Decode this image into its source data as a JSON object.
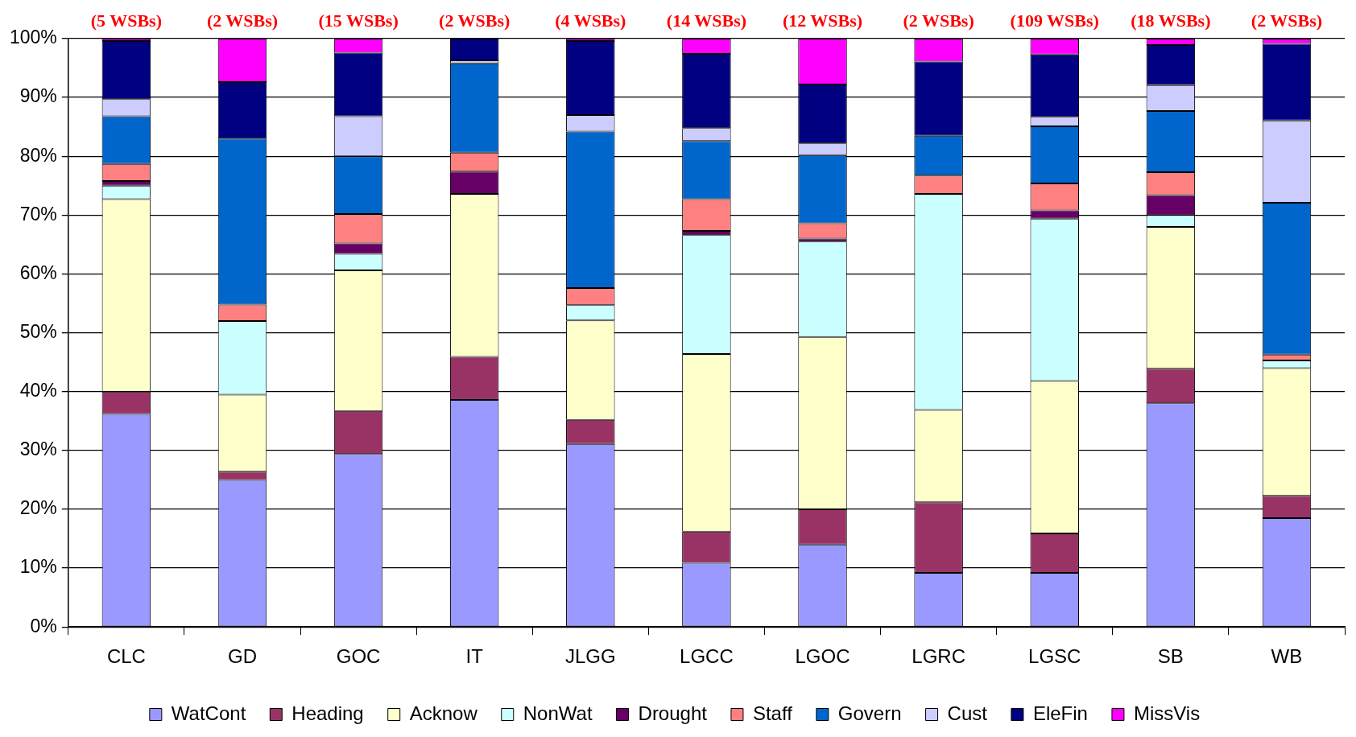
{
  "chart_data": {
    "type": "bar",
    "stacked": true,
    "categories": [
      "CLC",
      "GD",
      "GOC",
      "IT",
      "JLGG",
      "LGCC",
      "LGOC",
      "LGRC",
      "LGSC",
      "SB",
      "WB"
    ],
    "series": [
      {
        "name": "WatCont",
        "color": "#9999ff",
        "values": [
          36.2,
          25,
          29.4,
          38.6,
          31.1,
          10.9,
          14,
          9.2,
          9.2,
          38,
          18.5
        ]
      },
      {
        "name": "Heading",
        "color": "#993366",
        "values": [
          3.8,
          1.4,
          7.3,
          7.3,
          4.1,
          5.3,
          6,
          12,
          6.7,
          5.9,
          3.8
        ]
      },
      {
        "name": "Acknow",
        "color": "#ffffcc",
        "values": [
          32.7,
          13.1,
          23.9,
          27.7,
          16.9,
          30.2,
          29.3,
          15.7,
          25.9,
          24.1,
          21.7
        ]
      },
      {
        "name": "NonWat",
        "color": "#ccffff",
        "values": [
          2.3,
          12.5,
          2.8,
          0,
          2.6,
          20.2,
          16.2,
          36.7,
          27.6,
          2,
          1.3
        ]
      },
      {
        "name": "Drought",
        "color": "#660066",
        "values": [
          0.8,
          0,
          1.8,
          3.8,
          0,
          0.7,
          0.5,
          0,
          1.4,
          3.4,
          0
        ]
      },
      {
        "name": "Staff",
        "color": "#ff8080",
        "values": [
          2.9,
          2.8,
          5,
          3.2,
          2.9,
          5.4,
          2.6,
          3.1,
          4.6,
          3.9,
          1
        ]
      },
      {
        "name": "Govern",
        "color": "#0066cc",
        "values": [
          8.1,
          28.2,
          9.8,
          15.2,
          26.6,
          9.9,
          11.6,
          6.8,
          9.7,
          10.4,
          25.8
        ]
      },
      {
        "name": "Cust",
        "color": "#ccccff",
        "values": [
          2.9,
          0,
          6.8,
          0.5,
          2.8,
          2.2,
          2,
          0,
          1.6,
          4.4,
          14
        ]
      },
      {
        "name": "EleFin",
        "color": "#000080",
        "values": [
          9.9,
          9.6,
          10.8,
          3.7,
          12.6,
          12.6,
          10,
          12.6,
          10.6,
          6.8,
          13
        ]
      },
      {
        "name": "MissVis",
        "color": "#ff00ff",
        "values": [
          0.4,
          7.4,
          2.4,
          0,
          0.4,
          2.6,
          7.8,
          3.9,
          2.7,
          1.1,
          0.9
        ]
      }
    ],
    "ylim": [
      0,
      100
    ],
    "yticks": [
      {
        "value": 0,
        "label": "0%"
      },
      {
        "value": 10,
        "label": "10%"
      },
      {
        "value": 20,
        "label": "20%"
      },
      {
        "value": 30,
        "label": "30%"
      },
      {
        "value": 40,
        "label": "40%"
      },
      {
        "value": 50,
        "label": "50%"
      },
      {
        "value": 60,
        "label": "60%"
      },
      {
        "value": 70,
        "label": "70%"
      },
      {
        "value": 80,
        "label": "80%"
      },
      {
        "value": 90,
        "label": "90%"
      },
      {
        "value": 100,
        "label": "100%"
      }
    ],
    "grid": "y",
    "legend": "bottom",
    "annotations": [
      {
        "text": "(5 WSBs)",
        "x": "CLC",
        "y": 100
      },
      {
        "text": "(2 WSBs)",
        "x": "GD",
        "y": 100
      },
      {
        "text": "(15 WSBs)",
        "x": "GOC",
        "y": 100
      },
      {
        "text": "(2 WSBs)",
        "x": "IT",
        "y": 100
      },
      {
        "text": "(4 WSBs)",
        "x": "JLGG",
        "y": 100
      },
      {
        "text": "(14 WSBs)",
        "x": "LGCC",
        "y": 100
      },
      {
        "text": "(12 WSBs)",
        "x": "LGOC",
        "y": 100
      },
      {
        "text": "(2 WSBs)",
        "x": "LGRC",
        "y": 100
      },
      {
        "text": "(109 WSBs)",
        "x": "LGSC",
        "y": 100
      },
      {
        "text": "(18 WSBs)",
        "x": "SB",
        "y": 100
      },
      {
        "text": "(2 WSBs)",
        "x": "WB",
        "y": 100
      }
    ]
  }
}
